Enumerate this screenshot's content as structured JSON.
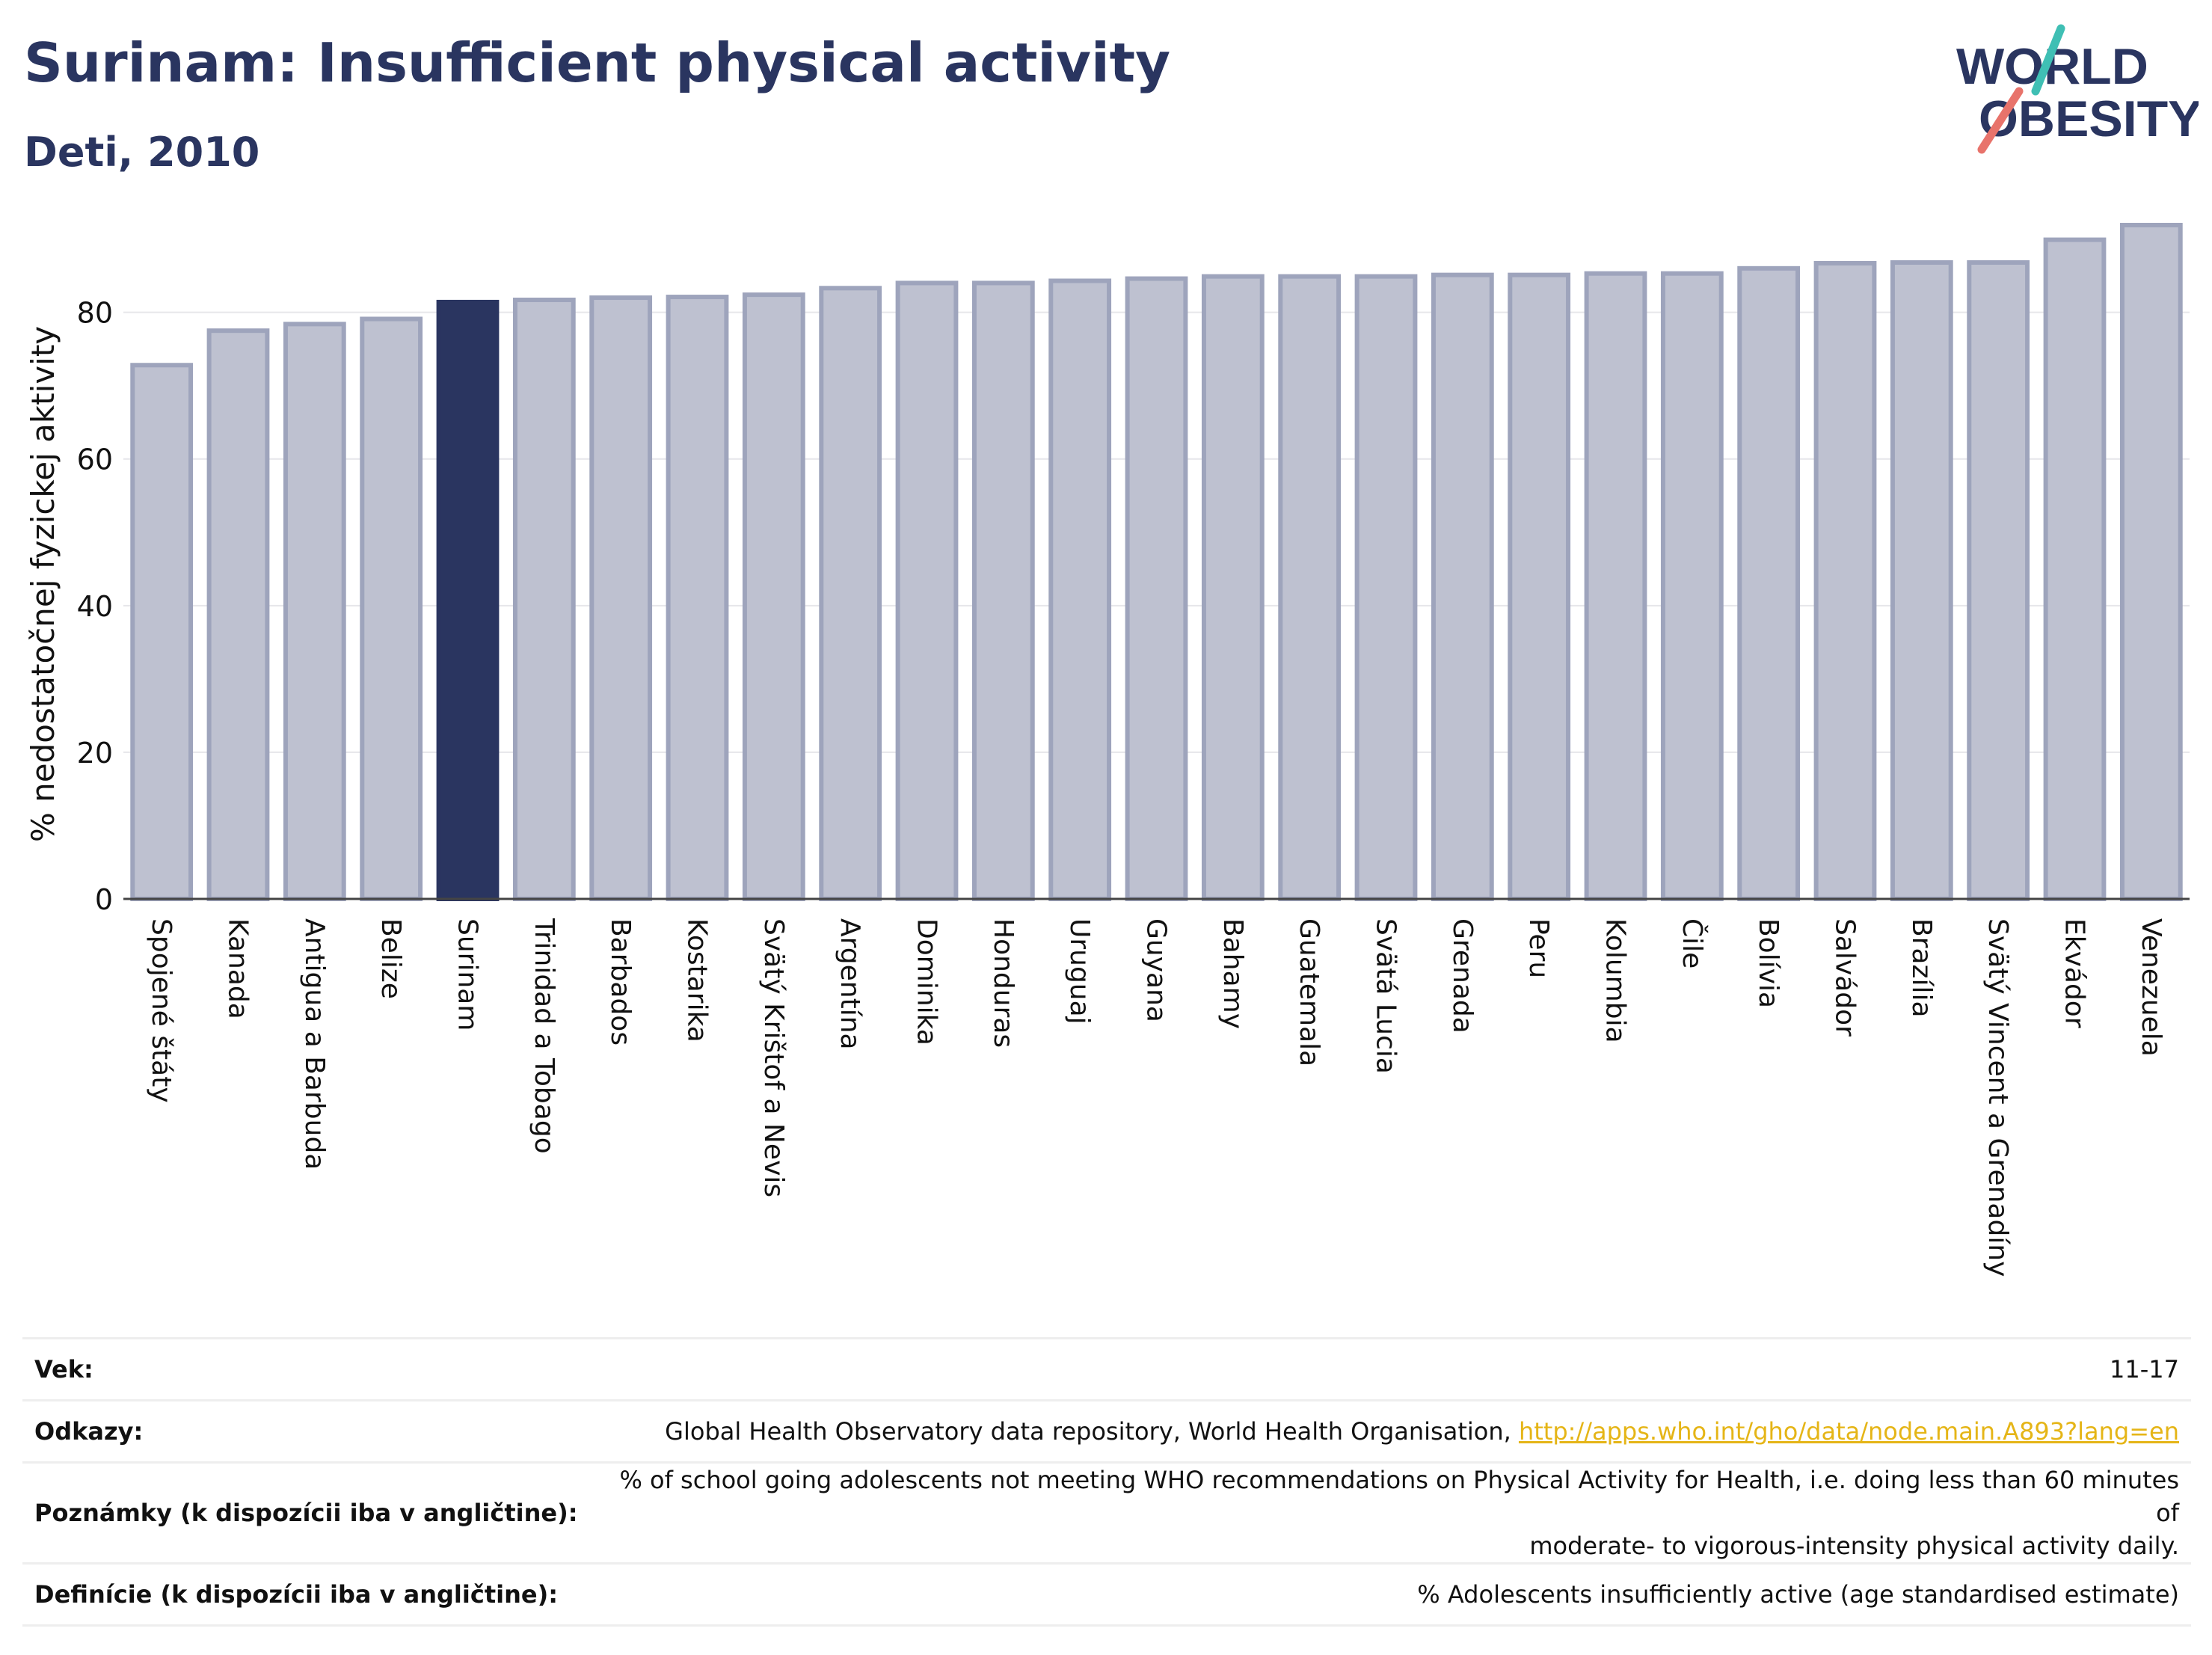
{
  "header": {
    "title": "Surinam: Insufficient physical activity",
    "subtitle": "Deti, 2010"
  },
  "logo": {
    "line1": "WORLD",
    "line2": "OBESITY"
  },
  "colors": {
    "bar": "#bec1d0",
    "bar_stroke": "#9ea4bc",
    "highlight": "#2a3560",
    "title": "#2a3560",
    "link": "#e5b517"
  },
  "chart_data": {
    "type": "bar",
    "title": "Surinam: Insufficient physical activity",
    "subtitle": "Deti, 2010",
    "xlabel": "",
    "ylabel": "% nedostatočnej fyzickej aktivity",
    "ylim": [
      0,
      92
    ],
    "yticks": [
      0,
      20,
      40,
      60,
      80
    ],
    "grid": true,
    "highlight": "Surinam",
    "categories": [
      "Spojené štáty",
      "Kanada",
      "Antigua a Barbuda",
      "Belize",
      "Surinam",
      "Trinidad a Tobago",
      "Barbados",
      "Kostarika",
      "Svätý Krištof a Nevis",
      "Argentína",
      "Dominika",
      "Honduras",
      "Uruguaj",
      "Guyana",
      "Bahamy",
      "Guatemala",
      "Svätá Lucia",
      "Grenada",
      "Peru",
      "Kolumbia",
      "Čile",
      "Bolívia",
      "Salvádor",
      "Brazília",
      "Svätý Vincent a Grenadíny",
      "Ekvádor",
      "Venezuela"
    ],
    "values": [
      72.8,
      77.5,
      78.4,
      79.1,
      81.4,
      81.7,
      82.0,
      82.1,
      82.4,
      83.3,
      84.0,
      84.0,
      84.3,
      84.6,
      84.9,
      84.9,
      84.9,
      85.1,
      85.1,
      85.3,
      85.3,
      86.0,
      86.7,
      86.8,
      86.8,
      89.9,
      91.9
    ]
  },
  "meta": {
    "age_label": "Vek:",
    "age_value": "11-17",
    "refs_label": "Odkazy:",
    "refs_text": "Global Health Observatory data repository, World Health Organisation, ",
    "refs_link": "http://apps.who.int/gho/data/node.main.A893?lang=en",
    "notes_label": "Poznámky (k dispozícii iba v angličtine):",
    "notes_line1": "% of school going adolescents not meeting WHO recommendations on Physical Activity for Health, i.e. doing less than 60 minutes of",
    "notes_line2": "moderate- to vigorous-intensity physical activity daily.",
    "defs_label": "Definície (k dispozícii iba v angličtine):",
    "defs_value": "% Adolescents insufficiently active (age standardised estimate)"
  }
}
